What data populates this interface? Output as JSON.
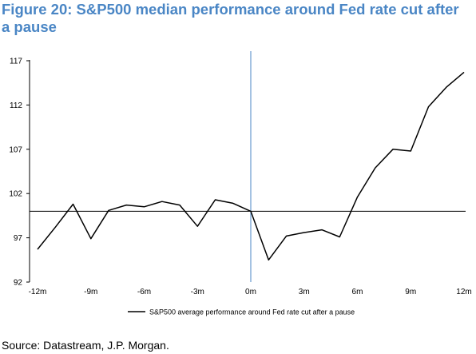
{
  "figure": {
    "title": "Figure 20: S&P500 median performance around Fed rate cut after a pause",
    "source": "Source: Datastream, J.P. Morgan."
  },
  "chart_data": {
    "type": "line",
    "title": "Figure 20: S&P500 median performance around Fed rate cut after a pause",
    "xlabel": "",
    "ylabel": "",
    "xlim": [
      -12,
      12
    ],
    "ylim": [
      92,
      117
    ],
    "yticks": [
      92,
      97,
      102,
      107,
      112,
      117
    ],
    "ytick_labels": [
      "92",
      "97",
      "102",
      "107",
      "112",
      "117"
    ],
    "xticks": [
      -12,
      -9,
      -6,
      -3,
      0,
      3,
      6,
      9,
      12
    ],
    "xtick_labels": [
      "-12m",
      "-9m",
      "-6m",
      "-3m",
      "0m",
      "3m",
      "6m",
      "9m",
      "12m"
    ],
    "baseline": 100,
    "event_line_x": 0,
    "legend": {
      "position": "bottom-center"
    },
    "grid": false,
    "colors": {
      "series": "#000000",
      "event_line": "#4a86c5",
      "baseline": "#000000"
    },
    "series": [
      {
        "name": "S&P500 average performance around Fed rate cut after a pause",
        "x": [
          -12,
          -11,
          -10,
          -9,
          -8,
          -7,
          -6,
          -5,
          -4,
          -3,
          -2,
          -1,
          0,
          1,
          2,
          3,
          4,
          5,
          6,
          7,
          8,
          9,
          10,
          11,
          12
        ],
        "values": [
          95.7,
          98.2,
          100.8,
          96.9,
          100.1,
          100.7,
          100.5,
          101.1,
          100.7,
          98.3,
          101.3,
          100.9,
          100.0,
          94.5,
          97.2,
          97.6,
          97.9,
          97.1,
          101.6,
          104.9,
          107.0,
          106.8,
          111.8,
          114.0,
          115.7
        ]
      }
    ]
  }
}
